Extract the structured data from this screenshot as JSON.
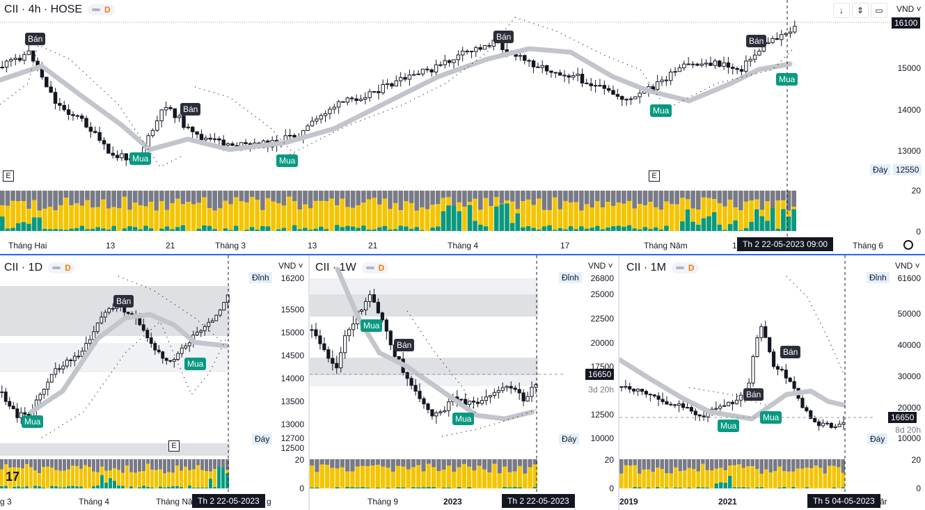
{
  "colors": {
    "up": "#ffffff",
    "down": "#131722",
    "buy": "#089981",
    "sell": "#2a2e39",
    "accent": "#2962ff",
    "yellow": "#f5c400",
    "gray": "#787b86"
  },
  "currency": "VND",
  "main": {
    "symbol": "CII",
    "interval": "4h",
    "exchange": "HOSE",
    "title_text": "CII · 4h · HOSE",
    "d_badge": "D",
    "toolbar_icons": [
      "arrow-down-icon",
      "collapse-icon",
      "maximize-icon"
    ],
    "price_ticks": [
      "16100",
      "15000",
      "14000",
      "13000",
      "12550"
    ],
    "last_price": "16100",
    "bottom_label": "Đáy",
    "bottom_value": "12550",
    "osc_ticks": [
      "20",
      "0"
    ],
    "time_labels": [
      "Tháng Hai",
      "13",
      "21",
      "Tháng 3",
      "13",
      "21",
      "Tháng 4",
      "17",
      "Tháng Năm",
      "1",
      "Tháng 6"
    ],
    "cursor_time": "Th 2 22-05-2023   09:00",
    "sell_labels": [
      "Bán",
      "Bán",
      "Bán",
      "Bán"
    ],
    "buy_labels": [
      "Mua",
      "Mua",
      "Mua",
      "Mua"
    ],
    "e_marker": "E",
    "settings_icon": "gear-icon"
  },
  "p1": {
    "symbol": "CII",
    "interval": "1D",
    "title_text": "CII · 1D",
    "d_badge": "D",
    "top_label": "Đỉnh",
    "top_value": "16200",
    "price_ticks": [
      "16200",
      "15500",
      "15000",
      "14500",
      "14000",
      "13500",
      "13000",
      "12700",
      "12500"
    ],
    "bottom_label": "Đáy",
    "bottom_value": "12700",
    "osc_ticks": [
      "20",
      "0"
    ],
    "time_labels": [
      "g 3",
      "Tháng 4",
      "Tháng Năm",
      "g"
    ],
    "cursor_time": "Th 2 22-05-2023",
    "sell_label": "Bán",
    "buy_labels": [
      "Mua",
      "Mua"
    ],
    "e_marker": "E",
    "logo_text": "17"
  },
  "p2": {
    "symbol": "CII",
    "interval": "1W",
    "title_text": "CII · 1W",
    "d_badge": "D",
    "top_label": "Đỉnh",
    "top_value": "26800",
    "price_ticks": [
      "25000",
      "22500",
      "20000",
      "17500",
      "16650",
      "3d 20h",
      "12500",
      "10000"
    ],
    "last_price": "16650",
    "countdown": "3d 20h",
    "bottom_label": "Đáy",
    "bottom_value": "10000",
    "osc_ticks": [
      "20",
      "0"
    ],
    "time_labels": [
      "Tháng 9",
      "2023"
    ],
    "cursor_time": "Th 2 22-05-2023",
    "sell_label": "Bán",
    "buy_labels": [
      "Mua",
      "Mua"
    ]
  },
  "p3": {
    "symbol": "CII",
    "interval": "1M",
    "title_text": "CII · 1M",
    "d_badge": "D",
    "top_label": "Đỉnh",
    "top_value": "61600",
    "price_ticks": [
      "50000",
      "40000",
      "30000",
      "20000",
      "16650",
      "8d 20h",
      "10000"
    ],
    "last_price": "16650",
    "countdown": "8d 20h",
    "bottom_label": "Đáy",
    "bottom_value": "10000",
    "osc_ticks": [
      "20",
      "0"
    ],
    "time_labels": [
      "2019",
      "2021",
      "ăr"
    ],
    "cursor_time": "Th 5 04-05-2023",
    "sell_labels": [
      "Bán",
      "Bán"
    ],
    "buy_labels": [
      "Mua",
      "Mua"
    ]
  }
}
